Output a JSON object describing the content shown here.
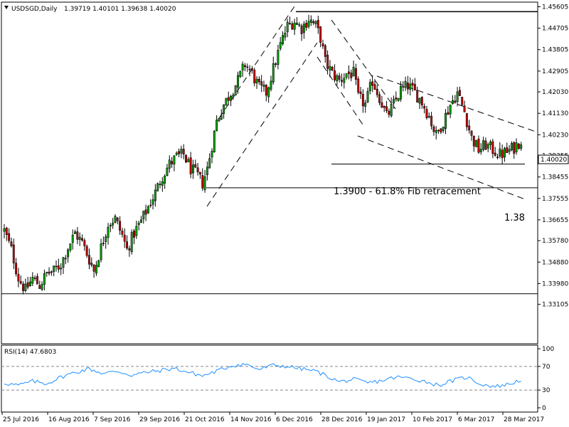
{
  "header": {
    "symbol": "USDSGD,Daily",
    "ohlc": "1.39719 1.40101 1.39638 1.40020",
    "dropdown_icon": "triangle-down-icon"
  },
  "chart_data": [
    {
      "type": "candlestick",
      "title": "",
      "ylim": [
        1.3145,
        1.458
      ],
      "y_ticks": [
        "1.45605",
        "1.44705",
        "1.43805",
        "1.42905",
        "1.42030",
        "1.41130",
        "1.40230",
        "1.39355",
        "1.38455",
        "1.37555",
        "1.36655",
        "1.35780",
        "1.34880",
        "1.33980",
        "1.33105"
      ],
      "x_ticks": [
        "25 Jul 2016",
        "16 Aug 2016",
        "7 Sep 2016",
        "29 Sep 2016",
        "21 Oct 2016",
        "14 Nov 2016",
        "6 Dec 2016",
        "28 Dec 2016",
        "19 Jan 2017",
        "10 Feb 2017",
        "6 Mar 2017",
        "28 Mar 2017"
      ],
      "last_price": "1.40020",
      "colors": {
        "up": "#00aa00",
        "down": "#cc0000",
        "wick": "#000000",
        "last_price_box": "#ffffff"
      },
      "close_path": [
        [
          0,
          1.362
        ],
        [
          3,
          1.354
        ],
        [
          6,
          1.342
        ],
        [
          9,
          1.337
        ],
        [
          12,
          1.342
        ],
        [
          15,
          1.339
        ],
        [
          18,
          1.344
        ],
        [
          21,
          1.345
        ],
        [
          24,
          1.348
        ],
        [
          27,
          1.355
        ],
        [
          30,
          1.361
        ],
        [
          33,
          1.357
        ],
        [
          36,
          1.35
        ],
        [
          38,
          1.345
        ],
        [
          41,
          1.355
        ],
        [
          44,
          1.365
        ],
        [
          47,
          1.367
        ],
        [
          50,
          1.36
        ],
        [
          52,
          1.354
        ],
        [
          55,
          1.361
        ],
        [
          58,
          1.366
        ],
        [
          61,
          1.372
        ],
        [
          64,
          1.378
        ],
        [
          67,
          1.385
        ],
        [
          70,
          1.39
        ],
        [
          73,
          1.393
        ],
        [
          76,
          1.394
        ],
        [
          79,
          1.388
        ],
        [
          82,
          1.385
        ],
        [
          84,
          1.382
        ],
        [
          86,
          1.388
        ],
        [
          88,
          1.398
        ],
        [
          90,
          1.408
        ],
        [
          93,
          1.415
        ],
        [
          96,
          1.42
        ],
        [
          99,
          1.425
        ],
        [
          102,
          1.432
        ],
        [
          105,
          1.428
        ],
        [
          108,
          1.422
        ],
        [
          111,
          1.42
        ],
        [
          114,
          1.43
        ],
        [
          117,
          1.44
        ],
        [
          120,
          1.448
        ],
        [
          123,
          1.45
        ],
        [
          126,
          1.447
        ],
        [
          129,
          1.451
        ],
        [
          132,
          1.448
        ],
        [
          134,
          1.443
        ],
        [
          136,
          1.433
        ],
        [
          139,
          1.428
        ],
        [
          142,
          1.425
        ],
        [
          145,
          1.428
        ],
        [
          148,
          1.428
        ],
        [
          150,
          1.418
        ],
        [
          153,
          1.415
        ],
        [
          156,
          1.425
        ],
        [
          159,
          1.418
        ],
        [
          162,
          1.41
        ],
        [
          165,
          1.415
        ],
        [
          168,
          1.421
        ],
        [
          171,
          1.423
        ],
        [
          174,
          1.42
        ],
        [
          177,
          1.416
        ],
        [
          180,
          1.41
        ],
        [
          183,
          1.402
        ],
        [
          186,
          1.408
        ],
        [
          189,
          1.415
        ],
        [
          192,
          1.42
        ],
        [
          195,
          1.412
        ],
        [
          198,
          1.401
        ],
        [
          201,
          1.396
        ],
        [
          204,
          1.398
        ],
        [
          207,
          1.396
        ],
        [
          210,
          1.394
        ],
        [
          213,
          1.395
        ],
        [
          216,
          1.397
        ],
        [
          219,
          1.4002
        ]
      ],
      "annotations": [
        {
          "text": "1.3900 - 61.8% Fib retracement",
          "level": 1.39
        },
        {
          "text": "1.38",
          "level": 1.38
        }
      ],
      "levels": [
        1.454,
        1.39,
        1.38,
        1.3355
      ]
    },
    {
      "type": "line",
      "title": "RSI(14) 47.6803",
      "ylim": [
        0,
        100
      ],
      "y_ticks": [
        "100",
        "70",
        "30",
        "0"
      ],
      "reference_lines": [
        70,
        30
      ],
      "color": "#1e90ff",
      "values": [
        [
          0,
          42
        ],
        [
          6,
          38
        ],
        [
          12,
          45
        ],
        [
          18,
          41
        ],
        [
          24,
          52
        ],
        [
          30,
          60
        ],
        [
          36,
          66
        ],
        [
          42,
          58
        ],
        [
          48,
          62
        ],
        [
          54,
          55
        ],
        [
          60,
          60
        ],
        [
          66,
          63
        ],
        [
          72,
          67
        ],
        [
          78,
          60
        ],
        [
          84,
          54
        ],
        [
          90,
          62
        ],
        [
          96,
          71
        ],
        [
          102,
          74
        ],
        [
          108,
          65
        ],
        [
          114,
          72
        ],
        [
          120,
          70
        ],
        [
          126,
          66
        ],
        [
          132,
          62
        ],
        [
          136,
          55
        ],
        [
          142,
          44
        ],
        [
          148,
          48
        ],
        [
          154,
          42
        ],
        [
          160,
          46
        ],
        [
          166,
          52
        ],
        [
          172,
          50
        ],
        [
          178,
          45
        ],
        [
          184,
          38
        ],
        [
          190,
          46
        ],
        [
          196,
          52
        ],
        [
          202,
          40
        ],
        [
          208,
          36
        ],
        [
          214,
          40
        ],
        [
          219,
          47.68
        ]
      ]
    }
  ]
}
